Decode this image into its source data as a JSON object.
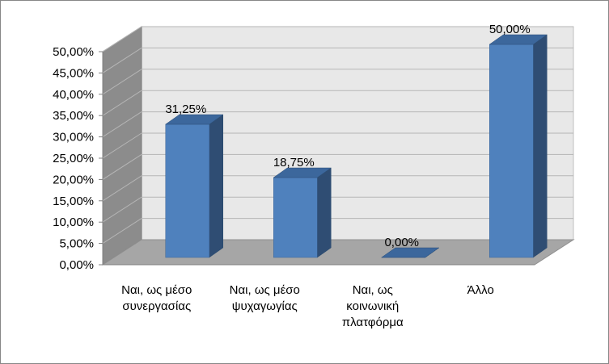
{
  "chart_data": {
    "type": "bar",
    "style": "3d-column",
    "categories": [
      [
        "Ναι, ως μέσο",
        "συνεργασίας"
      ],
      [
        "Ναι, ως μέσο",
        "ψυχαγωγίας"
      ],
      [
        "Ναι, ως",
        "κοινωνική",
        "πλατφόρμα"
      ],
      [
        "Άλλο"
      ]
    ],
    "values": [
      31.25,
      18.75,
      0.0,
      50.0
    ],
    "data_labels": [
      "31,25%",
      "18,75%",
      "0,00%",
      "50,00%"
    ],
    "ylim": [
      0,
      50
    ],
    "y_ticks": [
      "0,00%",
      "5,00%",
      "10,00%",
      "15,00%",
      "20,00%",
      "25,00%",
      "30,00%",
      "35,00%",
      "40,00%",
      "45,00%",
      "50,00%"
    ],
    "grid": true,
    "legend": "none",
    "colors": {
      "bar_front": "#4f81bd",
      "bar_side": "#2f4d73",
      "bar_top": "#3c679c",
      "back_wall": "#e8e8e8",
      "side_wall": "#8c8c8c",
      "floor": "#a6a6a6",
      "grid": "#b5b5b5"
    }
  }
}
